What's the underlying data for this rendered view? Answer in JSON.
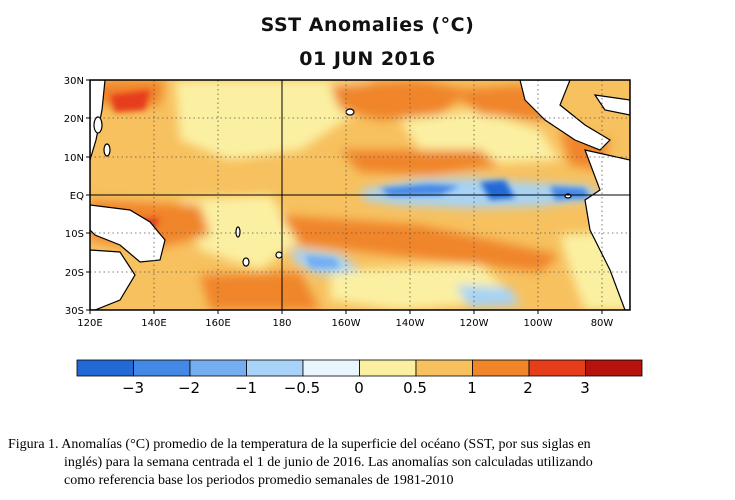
{
  "figure": {
    "title": "SST Anomalies (°C)",
    "date": "01 JUN 2016"
  },
  "map": {
    "x_ticks": [
      "120E",
      "140E",
      "160E",
      "180",
      "160W",
      "140W",
      "120W",
      "100W",
      "80W"
    ],
    "y_ticks": [
      "30N",
      "20N",
      "10N",
      "EQ",
      "10S",
      "20S",
      "30S"
    ],
    "lon_range": [
      "120E",
      "70W"
    ],
    "lat_range": [
      "30S",
      "30N"
    ],
    "reference_lines": [
      "EQ",
      "180"
    ],
    "grid": "dotted"
  },
  "colorbar": {
    "colors": [
      "#2369d6",
      "#4488e6",
      "#74adf0",
      "#a6d3f7",
      "#e9f6fd",
      "#fbf0a2",
      "#f7c15f",
      "#f0852a",
      "#e63d1a",
      "#b8120c"
    ],
    "labels": [
      "−3",
      "−2",
      "−1",
      "−0.5",
      "0",
      "0.5",
      "1",
      "2",
      "3"
    ]
  },
  "caption": {
    "line1": "Figura 1. Anomalías (°C) promedio de la temperatura de la superficie del océano (SST, por sus siglas en",
    "line2": "inglés) para la semana centrada el 1 de junio de 2016. Las anomalías son calculadas utilizando",
    "line3": "como referencia base los periodos promedio semanales de 1981-2010"
  }
}
